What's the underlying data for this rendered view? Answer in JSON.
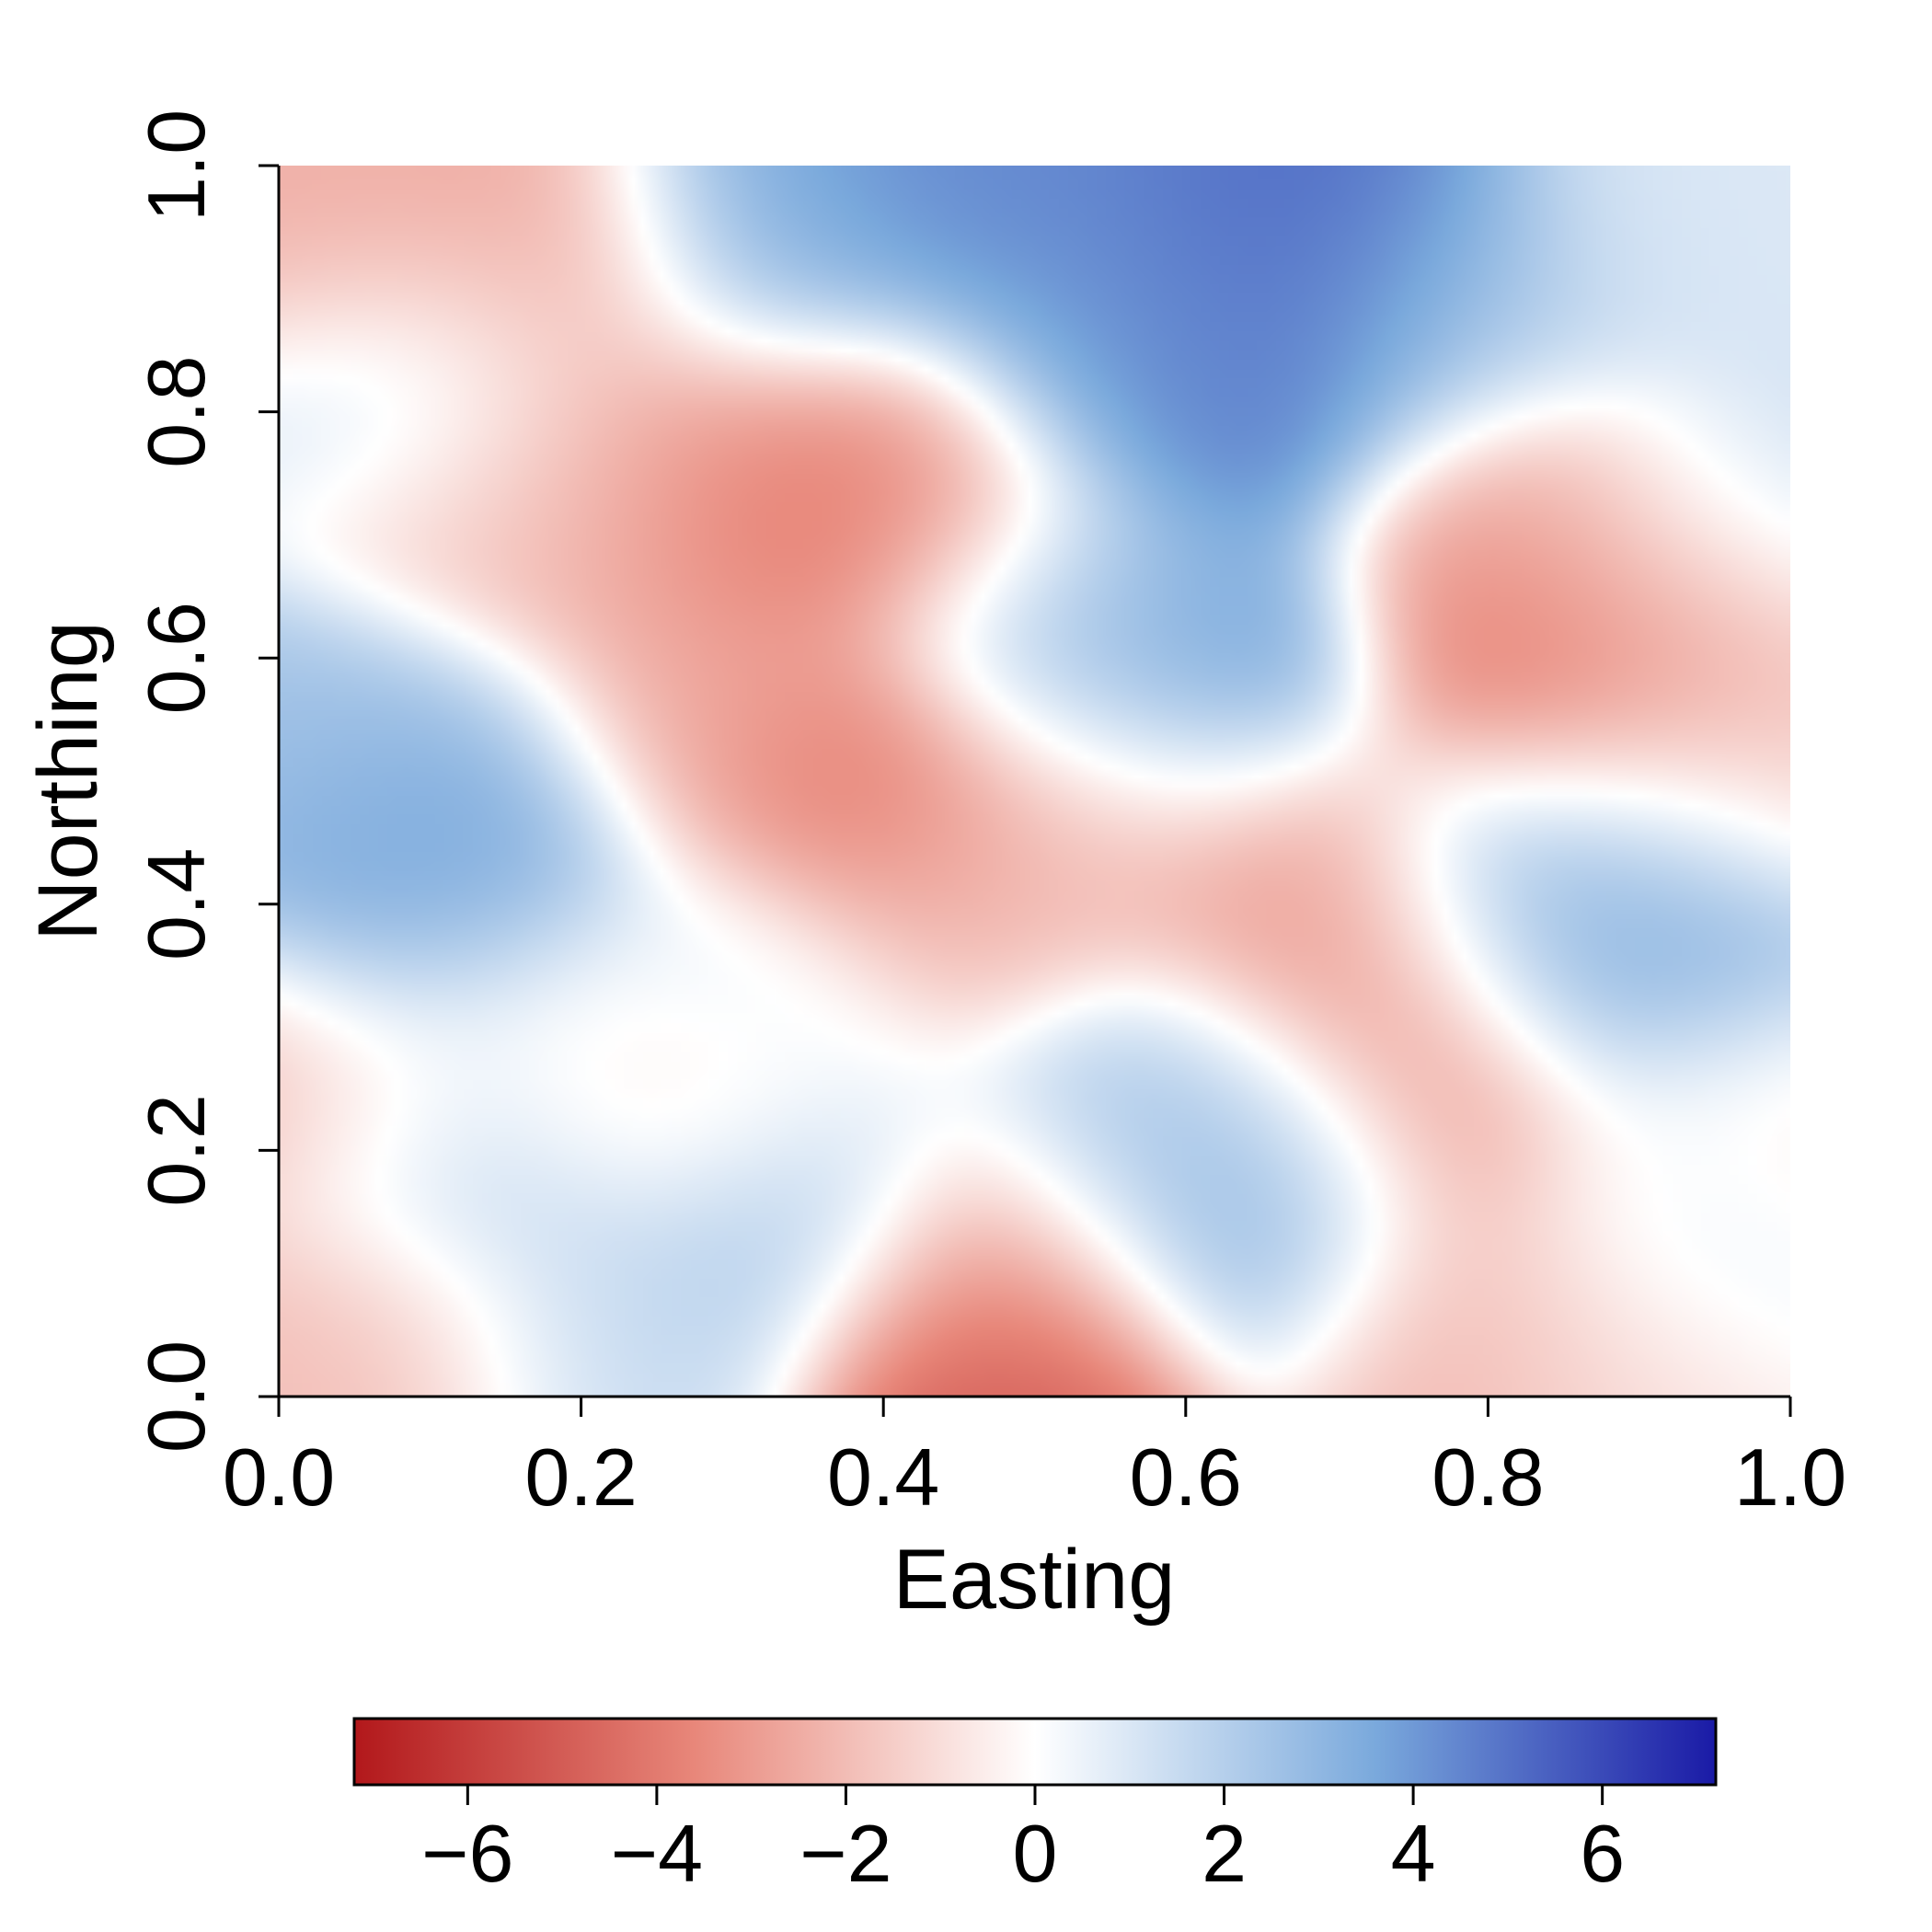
{
  "chart_data": {
    "type": "heatmap",
    "title": "",
    "xlabel": "Easting",
    "ylabel": "Northing",
    "xlim": [
      0.0,
      1.0
    ],
    "ylim": [
      0.0,
      1.0
    ],
    "x_ticks": [
      "0.0",
      "0.2",
      "0.4",
      "0.6",
      "0.8",
      "1.0"
    ],
    "y_ticks": [
      "0.0",
      "0.2",
      "0.4",
      "0.6",
      "0.8",
      "1.0"
    ],
    "grid": false,
    "colorbar": {
      "placement": "bottom",
      "range": [
        -7.2,
        7.2
      ],
      "ticks": [
        -6,
        -4,
        -2,
        0,
        2,
        4,
        6
      ],
      "tick_labels": [
        "−6",
        "−4",
        "−2",
        "0",
        "2",
        "4",
        "6"
      ],
      "low_color": "#b2181b",
      "mid_color": "#ffffff",
      "high_color": "#1a1aa6"
    },
    "field_anchors": [
      {
        "x": 0.05,
        "y": 0.95,
        "value": -2.5
      },
      {
        "x": 0.17,
        "y": 0.89,
        "value": -3.2
      },
      {
        "x": 0.1,
        "y": 0.82,
        "value": 2.0
      },
      {
        "x": 0.33,
        "y": 0.92,
        "value": 3.5
      },
      {
        "x": 0.48,
        "y": 0.98,
        "value": 4.5
      },
      {
        "x": 0.62,
        "y": 0.93,
        "value": 5.0
      },
      {
        "x": 0.7,
        "y": 0.94,
        "value": 5.5
      },
      {
        "x": 0.62,
        "y": 0.82,
        "value": 5.0
      },
      {
        "x": 0.55,
        "y": 0.86,
        "value": 3.5
      },
      {
        "x": 0.78,
        "y": 0.88,
        "value": 2.0
      },
      {
        "x": 0.93,
        "y": 0.95,
        "value": 1.0
      },
      {
        "x": 0.33,
        "y": 0.74,
        "value": -4.5
      },
      {
        "x": 0.42,
        "y": 0.74,
        "value": -3.5
      },
      {
        "x": 0.15,
        "y": 0.72,
        "value": -2.0
      },
      {
        "x": 0.24,
        "y": 0.75,
        "value": -2.5
      },
      {
        "x": 0.6,
        "y": 0.58,
        "value": 4.5
      },
      {
        "x": 0.52,
        "y": 0.64,
        "value": 2.0
      },
      {
        "x": 0.85,
        "y": 0.57,
        "value": -4.8
      },
      {
        "x": 0.83,
        "y": 0.7,
        "value": -3.0
      },
      {
        "x": 0.93,
        "y": 0.63,
        "value": -2.5
      },
      {
        "x": 0.97,
        "y": 0.72,
        "value": 1.5
      },
      {
        "x": 0.97,
        "y": 0.52,
        "value": -1.5
      },
      {
        "x": 0.05,
        "y": 0.53,
        "value": 2.5
      },
      {
        "x": 0.12,
        "y": 0.45,
        "value": 4.0
      },
      {
        "x": 0.1,
        "y": 0.39,
        "value": 3.5
      },
      {
        "x": 0.38,
        "y": 0.48,
        "value": -4.5
      },
      {
        "x": 0.28,
        "y": 0.55,
        "value": -2.5
      },
      {
        "x": 0.46,
        "y": 0.4,
        "value": -2.0
      },
      {
        "x": 0.68,
        "y": 0.41,
        "value": -3.0
      },
      {
        "x": 0.72,
        "y": 0.33,
        "value": -4.5
      },
      {
        "x": 0.77,
        "y": 0.22,
        "value": -3.5
      },
      {
        "x": 0.82,
        "y": 0.39,
        "value": 4.0
      },
      {
        "x": 0.92,
        "y": 0.33,
        "value": 3.5
      },
      {
        "x": 0.88,
        "y": 0.45,
        "value": 2.5
      },
      {
        "x": 0.62,
        "y": 0.24,
        "value": 2.5
      },
      {
        "x": 0.65,
        "y": 0.15,
        "value": 4.0
      },
      {
        "x": 0.57,
        "y": 0.2,
        "value": 2.5
      },
      {
        "x": 0.48,
        "y": 0.02,
        "value": -5.2
      },
      {
        "x": 0.48,
        "y": 0.12,
        "value": -3.5
      },
      {
        "x": 0.34,
        "y": 0.16,
        "value": 3.5
      },
      {
        "x": 0.29,
        "y": 0.24,
        "value": -2.0
      },
      {
        "x": 0.12,
        "y": 0.2,
        "value": 2.5
      },
      {
        "x": 0.03,
        "y": 0.25,
        "value": -2.5
      },
      {
        "x": 0.06,
        "y": 0.05,
        "value": -2.0
      },
      {
        "x": 0.22,
        "y": 0.06,
        "value": 1.5
      },
      {
        "x": 0.3,
        "y": 0.33,
        "value": 1.5
      },
      {
        "x": 0.93,
        "y": 0.15,
        "value": 1.5
      },
      {
        "x": 0.97,
        "y": 0.22,
        "value": -1.5
      },
      {
        "x": 0.78,
        "y": 0.06,
        "value": -2.5
      },
      {
        "x": 0.88,
        "y": 0.05,
        "value": -1.0
      },
      {
        "x": 0.55,
        "y": 0.48,
        "value": -2.0
      },
      {
        "x": 0.18,
        "y": 0.3,
        "value": -1.0
      }
    ]
  }
}
